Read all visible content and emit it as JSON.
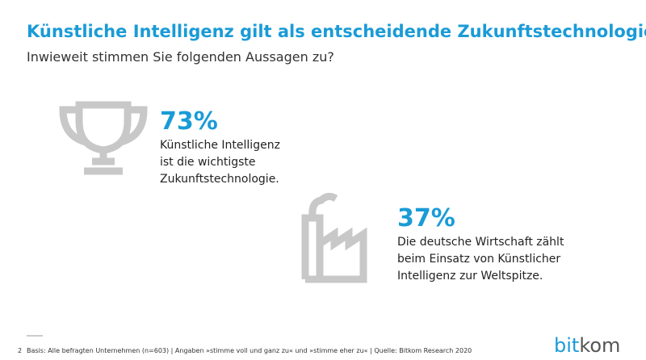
{
  "header": {
    "title": "Künstliche Intelligenz gilt als entscheidende Zukunftstechnologie",
    "subtitle": "Inwieweit stimmen Sie folgenden Aussagen zu?"
  },
  "stats": [
    {
      "value": "73%",
      "lines": [
        "Künstliche Intelligenz",
        "ist die wichtigste",
        "Zukunftstechnologie."
      ]
    },
    {
      "value": "37%",
      "lines": [
        "Die deutsche Wirtschaft zählt",
        "beim Einsatz von Künstlicher",
        "Intelligenz zur Weltspitze."
      ]
    }
  ],
  "footer": {
    "page": "2",
    "source": "Basis: Alle befragten Unternehmen (n=603) | Angaben »stimme voll und ganz zu« und »stimme eher zu« | Quelle: Bitkom Research 2020",
    "logo": [
      "bit",
      "kom"
    ]
  }
}
